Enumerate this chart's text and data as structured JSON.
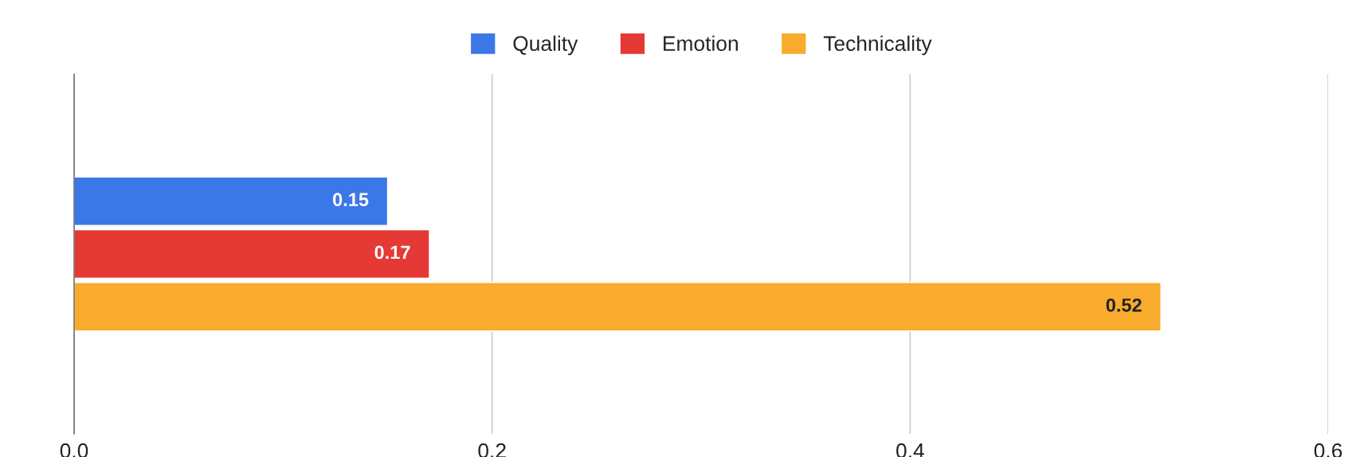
{
  "chart_data": {
    "type": "bar",
    "orientation": "horizontal",
    "categories": [
      null
    ],
    "series": [
      {
        "name": "Quality",
        "color": "#3b78e7",
        "values": [
          0.15
        ]
      },
      {
        "name": "Emotion",
        "color": "#e53935",
        "values": [
          0.17
        ]
      },
      {
        "name": "Technicality",
        "color": "#f9ab2e",
        "values": [
          0.52
        ]
      }
    ],
    "xlim": [
      0,
      0.6
    ],
    "xticks": [
      {
        "value": 0,
        "label": "0.0"
      },
      0.2,
      0.4,
      0.6
    ],
    "grid": "x",
    "legend": "top",
    "data_labels": true
  }
}
